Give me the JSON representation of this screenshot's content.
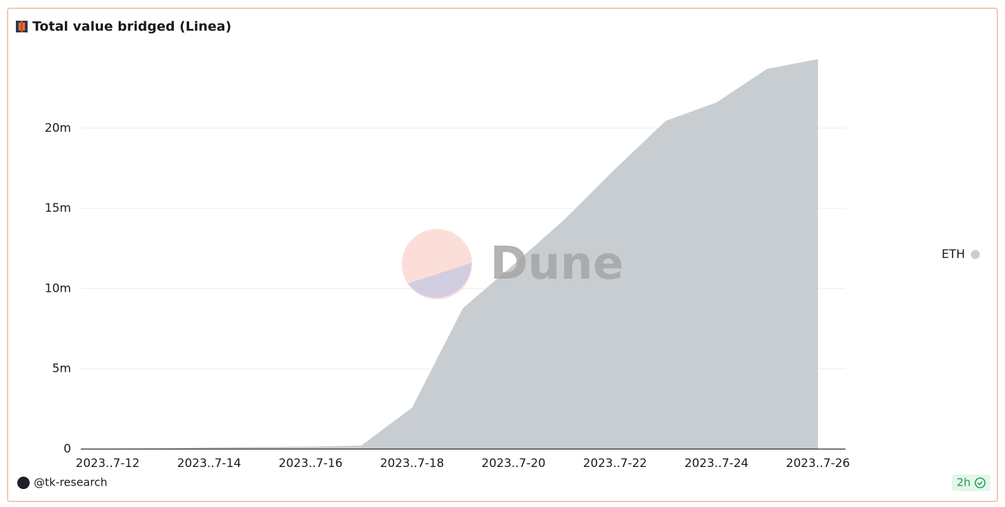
{
  "chart_data": {
    "type": "area",
    "title": "Total value bridged (Linea)",
    "categories": [
      "2023..7-12",
      null,
      "2023..7-14",
      null,
      "2023..7-16",
      null,
      "2023..7-18",
      null,
      "2023..7-20",
      null,
      "2023..7-22",
      null,
      "2023..7-24",
      null,
      "2023..7-26"
    ],
    "series": [
      {
        "name": "ETH",
        "color": "#c8cdd1",
        "values": [
          20000,
          50000,
          100000,
          130000,
          150000,
          220000,
          2580000,
          8770000,
          11500000,
          14300000,
          17450000,
          20460000,
          21600000,
          23700000,
          24300000
        ]
      }
    ],
    "ylim": [
      0,
      25000000
    ],
    "yticks": [
      {
        "value": 0,
        "label": "0"
      },
      {
        "value": 5000000,
        "label": "5m"
      },
      {
        "value": 10000000,
        "label": "10m"
      },
      {
        "value": 15000000,
        "label": "15m"
      },
      {
        "value": 20000000,
        "label": "20m"
      }
    ],
    "grid": true,
    "legend": "right",
    "watermark": "Dune",
    "author": "@tk-research",
    "refresh": "2h"
  }
}
